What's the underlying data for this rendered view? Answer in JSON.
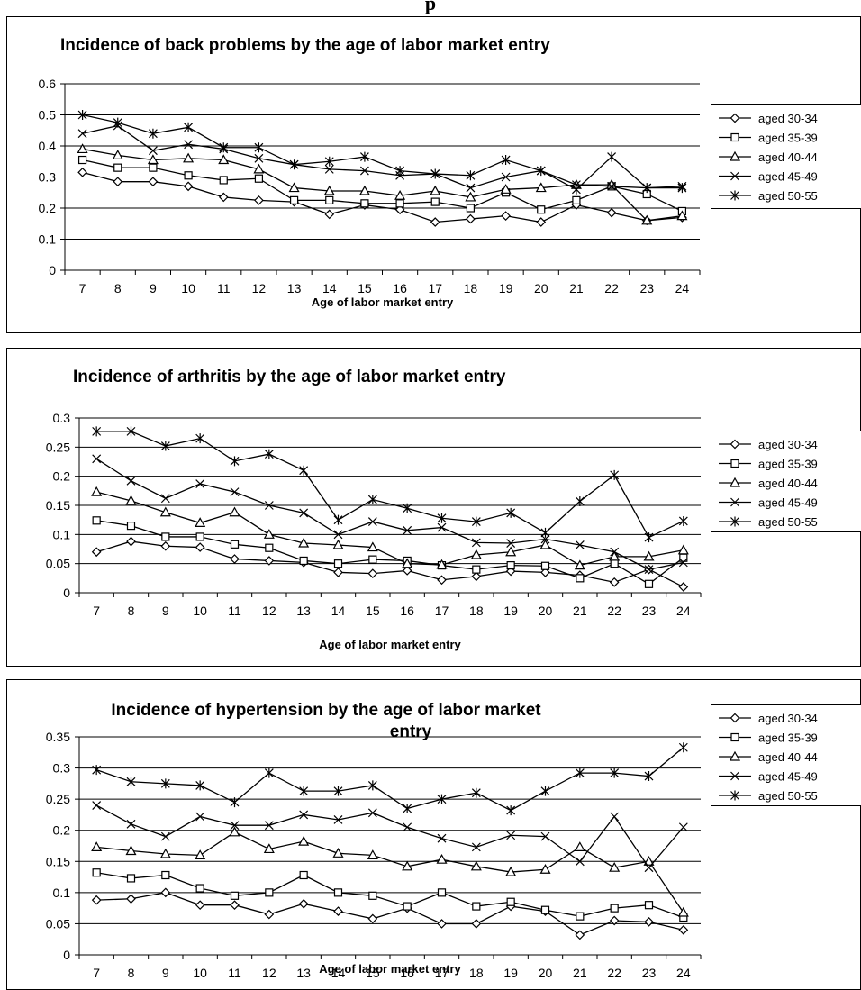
{
  "page": {
    "heading": "p"
  },
  "chart_data": [
    {
      "type": "line",
      "title": "Incidence of back problems by the age of labor market entry",
      "xlabel": "Age of labor market entry",
      "ylabel": "",
      "x": [
        7,
        8,
        9,
        10,
        11,
        12,
        13,
        14,
        15,
        16,
        17,
        18,
        19,
        20,
        21,
        22,
        23,
        24
      ],
      "ylim": [
        0,
        0.6
      ],
      "yticks": [
        "0",
        "0.1",
        "0.2",
        "0.3",
        "0.4",
        "0.5",
        "0.6"
      ],
      "grid": true,
      "legend": "right",
      "series": [
        {
          "name": "aged 30-34",
          "marker": "diamond",
          "values": [
            0.315,
            0.285,
            0.285,
            0.27,
            0.235,
            0.225,
            0.22,
            0.18,
            0.21,
            0.195,
            0.155,
            0.165,
            0.175,
            0.155,
            0.21,
            0.185,
            0.16,
            0.17
          ]
        },
        {
          "name": "aged 35-39",
          "marker": "square",
          "values": [
            0.355,
            0.33,
            0.33,
            0.305,
            0.29,
            0.295,
            0.225,
            0.225,
            0.215,
            0.215,
            0.22,
            0.2,
            0.25,
            0.195,
            0.225,
            0.27,
            0.245,
            0.19
          ]
        },
        {
          "name": "aged 40-44",
          "marker": "triangle",
          "values": [
            0.39,
            0.37,
            0.355,
            0.36,
            0.355,
            0.325,
            0.265,
            0.255,
            0.255,
            0.24,
            0.255,
            0.235,
            0.26,
            0.265,
            0.275,
            0.275,
            0.16,
            0.175
          ]
        },
        {
          "name": "aged 45-49",
          "marker": "x",
          "values": [
            0.44,
            0.465,
            0.385,
            0.405,
            0.39,
            0.36,
            0.34,
            0.325,
            0.32,
            0.305,
            0.31,
            0.265,
            0.3,
            0.32,
            0.275,
            0.27,
            0.265,
            0.27
          ]
        },
        {
          "name": "aged 50-55",
          "marker": "star",
          "values": [
            0.5,
            0.475,
            0.44,
            0.46,
            0.395,
            0.395,
            0.34,
            0.35,
            0.365,
            0.32,
            0.31,
            0.305,
            0.355,
            0.32,
            0.26,
            0.365,
            0.265,
            0.265
          ]
        }
      ]
    },
    {
      "type": "line",
      "title": "Incidence of arthritis by the age of labor market entry",
      "xlabel": "Age of labor market entry",
      "ylabel": "",
      "x": [
        7,
        8,
        9,
        10,
        11,
        12,
        13,
        14,
        15,
        16,
        17,
        18,
        19,
        20,
        21,
        22,
        23,
        24
      ],
      "ylim": [
        0,
        0.3
      ],
      "yticks": [
        "0",
        "0.05",
        "0.1",
        "0.15",
        "0.2",
        "0.25",
        "0.3"
      ],
      "grid": true,
      "legend": "right",
      "series": [
        {
          "name": "aged 30-34",
          "marker": "diamond",
          "values": [
            0.07,
            0.088,
            0.08,
            0.078,
            0.058,
            0.055,
            0.052,
            0.035,
            0.033,
            0.038,
            0.022,
            0.028,
            0.037,
            0.035,
            0.03,
            0.018,
            0.04,
            0.01
          ]
        },
        {
          "name": "aged 35-39",
          "marker": "square",
          "values": [
            0.124,
            0.115,
            0.096,
            0.096,
            0.083,
            0.077,
            0.055,
            0.05,
            0.057,
            0.055,
            0.047,
            0.04,
            0.047,
            0.046,
            0.025,
            0.05,
            0.015,
            0.06
          ]
        },
        {
          "name": "aged 40-44",
          "marker": "triangle",
          "values": [
            0.173,
            0.158,
            0.138,
            0.12,
            0.138,
            0.1,
            0.085,
            0.082,
            0.078,
            0.05,
            0.048,
            0.065,
            0.07,
            0.082,
            0.047,
            0.062,
            0.062,
            0.073
          ]
        },
        {
          "name": "aged 45-49",
          "marker": "x",
          "values": [
            0.23,
            0.192,
            0.162,
            0.187,
            0.173,
            0.15,
            0.137,
            0.1,
            0.122,
            0.107,
            0.112,
            0.086,
            0.085,
            0.092,
            0.082,
            0.07,
            0.04,
            0.052
          ]
        },
        {
          "name": "aged 50-55",
          "marker": "star",
          "values": [
            0.277,
            0.277,
            0.252,
            0.265,
            0.226,
            0.238,
            0.21,
            0.125,
            0.16,
            0.145,
            0.128,
            0.122,
            0.137,
            0.103,
            0.157,
            0.202,
            0.095,
            0.123
          ]
        }
      ]
    },
    {
      "type": "line",
      "title": "Incidence of hypertension by the age of labor market entry",
      "xlabel": "Age of labor market entry",
      "ylabel": "",
      "x": [
        7,
        8,
        9,
        10,
        11,
        12,
        13,
        14,
        15,
        16,
        17,
        18,
        19,
        20,
        21,
        22,
        23,
        24
      ],
      "ylim": [
        0,
        0.35
      ],
      "yticks": [
        "0",
        "0.05",
        "0.1",
        "0.15",
        "0.2",
        "0.25",
        "0.3",
        "0.35"
      ],
      "grid": true,
      "legend": "right",
      "series": [
        {
          "name": "aged 30-34",
          "marker": "diamond",
          "values": [
            0.088,
            0.09,
            0.1,
            0.08,
            0.08,
            0.065,
            0.082,
            0.07,
            0.058,
            0.075,
            0.05,
            0.05,
            0.078,
            0.07,
            0.032,
            0.055,
            0.053,
            0.04
          ]
        },
        {
          "name": "aged 35-39",
          "marker": "square",
          "values": [
            0.132,
            0.123,
            0.128,
            0.107,
            0.095,
            0.1,
            0.128,
            0.1,
            0.095,
            0.078,
            0.1,
            0.078,
            0.085,
            0.072,
            0.062,
            0.075,
            0.08,
            0.06
          ]
        },
        {
          "name": "aged 40-44",
          "marker": "triangle",
          "values": [
            0.173,
            0.167,
            0.162,
            0.16,
            0.197,
            0.17,
            0.182,
            0.163,
            0.16,
            0.142,
            0.153,
            0.142,
            0.133,
            0.137,
            0.173,
            0.14,
            0.15,
            0.068
          ]
        },
        {
          "name": "aged 45-49",
          "marker": "x",
          "values": [
            0.24,
            0.21,
            0.19,
            0.222,
            0.208,
            0.208,
            0.225,
            0.217,
            0.228,
            0.205,
            0.187,
            0.173,
            0.192,
            0.19,
            0.15,
            0.222,
            0.14,
            0.205
          ]
        },
        {
          "name": "aged 50-55",
          "marker": "star",
          "values": [
            0.297,
            0.278,
            0.275,
            0.272,
            0.245,
            0.292,
            0.263,
            0.263,
            0.272,
            0.235,
            0.25,
            0.26,
            0.232,
            0.263,
            0.292,
            0.292,
            0.287,
            0.333
          ]
        }
      ]
    }
  ]
}
